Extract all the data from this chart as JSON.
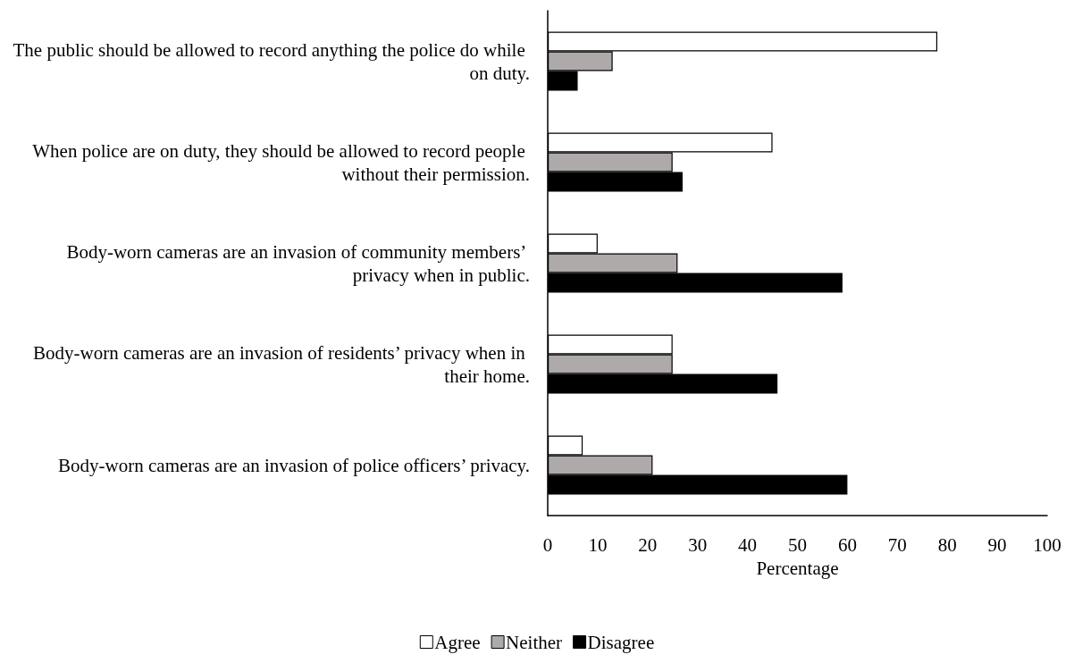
{
  "chart_data": {
    "type": "bar",
    "orientation": "horizontal",
    "xlabel": "Percentage",
    "categories": [
      "The public should be allowed to record anything the police do while on duty.",
      "When police are on duty, they should be allowed to record people without their permission.",
      "Body-worn cameras are an invasion of community members’ privacy when in public.",
      "Body-worn cameras are an invasion of residents’ privacy when in their home.",
      "Body-worn cameras are an invasion of police officers’ privacy."
    ],
    "series": [
      {
        "name": "Agree",
        "color": "#ffffff",
        "values": [
          78,
          45,
          10,
          25,
          7
        ]
      },
      {
        "name": "Neither",
        "color": "#aeaaaa",
        "values": [
          13,
          25,
          26,
          25,
          21
        ]
      },
      {
        "name": "Disagree",
        "color": "#000000",
        "values": [
          6,
          27,
          59,
          46,
          60
        ]
      }
    ],
    "xlim": [
      0,
      100
    ],
    "xticks": [
      0,
      10,
      20,
      30,
      40,
      50,
      60,
      70,
      80,
      90,
      100
    ],
    "grid": false,
    "legend": "bottom"
  }
}
